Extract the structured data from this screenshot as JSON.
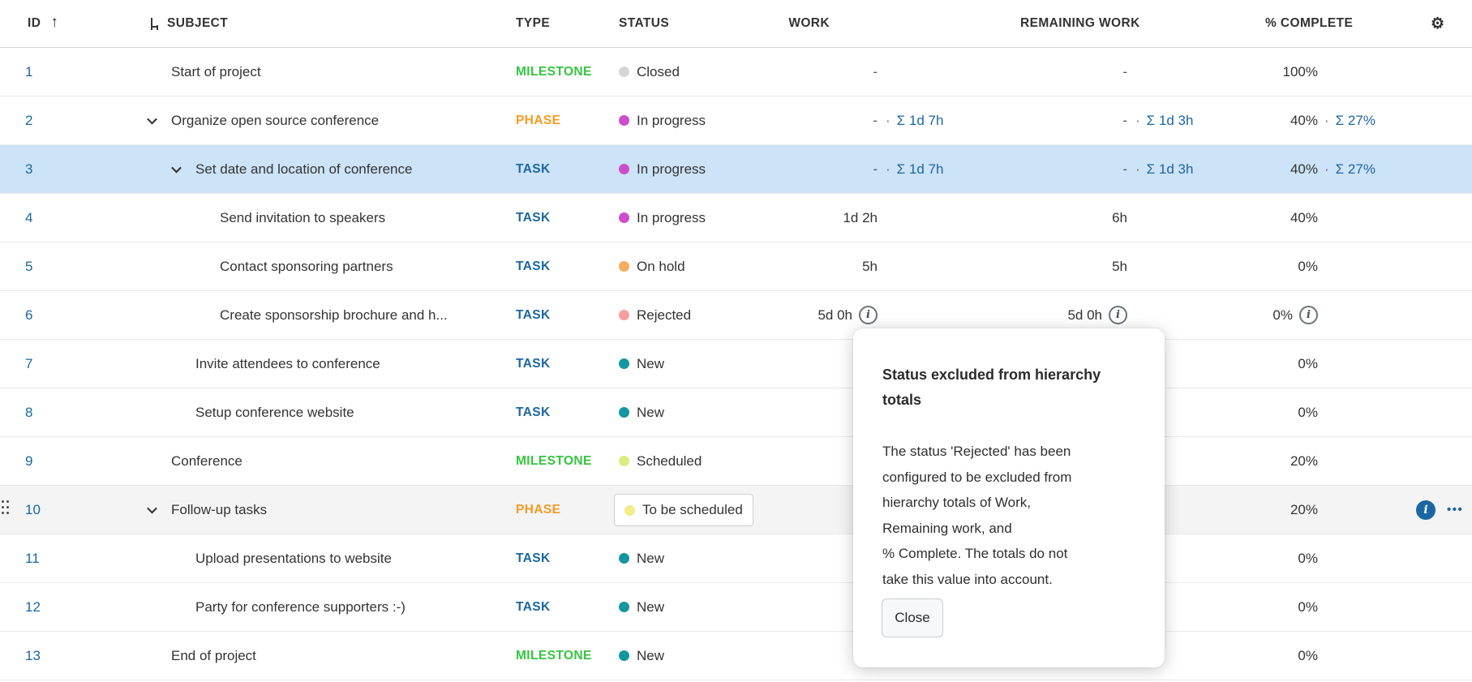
{
  "header": {
    "id": "ID",
    "sort_icon": "up-arrow",
    "subject": "SUBJECT",
    "type": "TYPE",
    "status": "STATUS",
    "work": "WORK",
    "remaining": "REMAINING WORK",
    "pct": "% COMPLETE",
    "gear_icon": "⚙"
  },
  "colors": {
    "link": "#1A67A3",
    "selected_row_bg": "#cde3f7",
    "hover_row_bg": "#f4f4f4",
    "type": {
      "MILESTONE": "#35c53f",
      "PHASE": "#f59b22",
      "TASK": "#1A67A3"
    },
    "status": {
      "Closed": "#d5d5d5",
      "In progress": "#cb4ecb",
      "On hold": "#f6ad5c",
      "Rejected": "#f89e9e",
      "New": "#14969e",
      "Scheduled": "#d9ec80",
      "To be scheduled": "#f2ec8a"
    }
  },
  "rows": [
    {
      "id": "1",
      "level": 0,
      "chevron": false,
      "subject": "Start of project",
      "type": "MILESTONE",
      "status": "Closed",
      "work": "-",
      "remaining": "-",
      "pct": "100%"
    },
    {
      "id": "2",
      "level": 0,
      "chevron": true,
      "subject": "Organize open source conference",
      "type": "PHASE",
      "status": "In progress",
      "work": "-",
      "work_sum": "Σ 1d 7h",
      "remaining": "-",
      "remaining_sum": "Σ 1d 3h",
      "pct": "40%",
      "pct_sum": "Σ 27%"
    },
    {
      "id": "3",
      "level": 1,
      "chevron": true,
      "selected": true,
      "subject": "Set date and location of conference",
      "type": "TASK",
      "status": "In progress",
      "work": "-",
      "work_sum": "Σ 1d 7h",
      "remaining": "-",
      "remaining_sum": "Σ 1d 3h",
      "pct": "40%",
      "pct_sum": "Σ 27%"
    },
    {
      "id": "4",
      "level": 2,
      "chevron": false,
      "subject": "Send invitation to speakers",
      "type": "TASK",
      "status": "In progress",
      "work": "1d 2h",
      "remaining": "6h",
      "pct": "40%"
    },
    {
      "id": "5",
      "level": 2,
      "chevron": false,
      "subject": "Contact sponsoring partners",
      "type": "TASK",
      "status": "On hold",
      "work": "5h",
      "remaining": "5h",
      "pct": "0%"
    },
    {
      "id": "6",
      "level": 2,
      "chevron": false,
      "subject": "Create sponsorship brochure and h...",
      "type": "TASK",
      "status": "Rejected",
      "work": "5d 0h",
      "work_info": true,
      "remaining": "5d 0h",
      "remaining_info": true,
      "pct": "0%",
      "pct_info": true
    },
    {
      "id": "7",
      "level": 1,
      "chevron": false,
      "subject": "Invite attendees to conference",
      "type": "TASK",
      "status": "New",
      "pct": "0%"
    },
    {
      "id": "8",
      "level": 1,
      "chevron": false,
      "subject": "Setup conference website",
      "type": "TASK",
      "status": "New",
      "pct": "0%"
    },
    {
      "id": "9",
      "level": 0,
      "chevron": false,
      "subject": "Conference",
      "type": "MILESTONE",
      "status": "Scheduled",
      "pct": "20%"
    },
    {
      "id": "10",
      "level": 0,
      "chevron": true,
      "hover": true,
      "drag_handle": true,
      "subject": "Follow-up tasks",
      "type": "PHASE",
      "status": "To be scheduled",
      "status_boxed": true,
      "pct": "20%",
      "trailing_info": true,
      "trailing_menu": "•••"
    },
    {
      "id": "11",
      "level": 1,
      "chevron": false,
      "subject": "Upload presentations to website",
      "type": "TASK",
      "status": "New",
      "pct": "0%"
    },
    {
      "id": "12",
      "level": 1,
      "chevron": false,
      "subject": "Party for conference supporters :-)",
      "type": "TASK",
      "status": "New",
      "pct": "0%"
    },
    {
      "id": "13",
      "level": 0,
      "chevron": false,
      "subject": "End of project",
      "type": "MILESTONE",
      "status": "New",
      "pct": "0%"
    }
  ],
  "popover": {
    "title": "Status excluded from hierarchy\ntotals",
    "body": "The status 'Rejected' has been\nconfigured to be excluded from\nhierarchy totals of Work,\nRemaining work, and\n% Complete. The totals do not\ntake this value into account.",
    "close_label": "Close"
  },
  "misc": {
    "sum_separator": "·",
    "info_glyph": "i"
  }
}
